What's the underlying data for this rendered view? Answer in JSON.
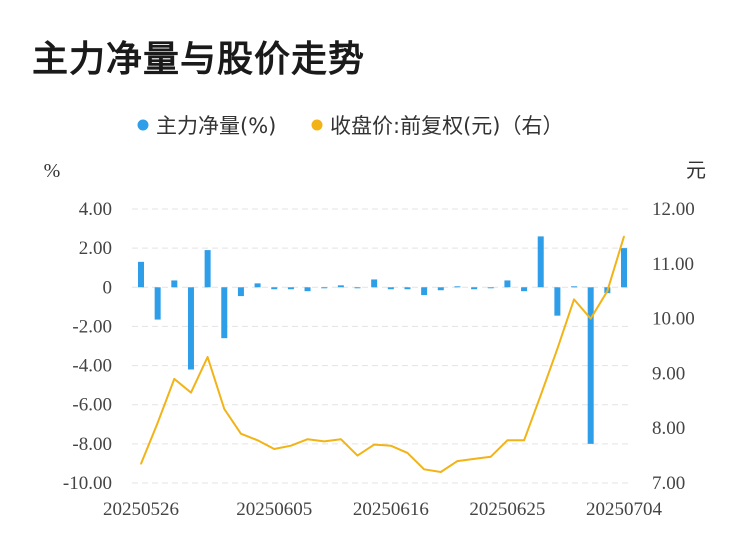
{
  "title": "主力净量与股价走势",
  "chart_data": {
    "type": "bar+line",
    "title": "主力净量与股价走势",
    "left_axis": {
      "unit": "%",
      "range": [
        -10,
        4
      ],
      "ticks": [
        "4.00",
        "2.00",
        "0",
        "-2.00",
        "-4.00",
        "-6.00",
        "-8.00",
        "-10.00"
      ]
    },
    "right_axis": {
      "unit": "元",
      "range": [
        7,
        12
      ],
      "ticks": [
        "12.00",
        "11.00",
        "10.00",
        "9.00",
        "8.00",
        "7.00"
      ]
    },
    "x_tick_labels": [
      "20250526",
      "20250605",
      "20250616",
      "20250625",
      "20250704"
    ],
    "x_tick_indices": [
      0,
      8,
      15,
      22,
      29
    ],
    "legend": [
      {
        "name": "主力净量(%)",
        "color": "#2f9ee8"
      },
      {
        "name": "收盘价:前复权(元)（右）",
        "color": "#f2b316"
      }
    ],
    "series": [
      {
        "name": "主力净量(%)",
        "axis": "left",
        "kind": "bar",
        "color": "#2f9ee8",
        "values": [
          1.3,
          -1.65,
          0.35,
          -4.2,
          1.9,
          -2.6,
          -0.45,
          0.2,
          -0.1,
          -0.1,
          -0.2,
          -0.05,
          0.1,
          -0.05,
          0.4,
          -0.1,
          -0.1,
          -0.4,
          -0.15,
          0.05,
          -0.1,
          0.0,
          0.35,
          -0.2,
          2.6,
          -1.45,
          0.05,
          -8.0,
          -0.3,
          2.0
        ]
      },
      {
        "name": "收盘价:前复权(元)（右）",
        "axis": "right",
        "kind": "line",
        "color": "#f2b316",
        "values": [
          7.35,
          8.1,
          8.9,
          8.65,
          9.3,
          8.35,
          7.9,
          7.78,
          7.62,
          7.68,
          7.8,
          7.76,
          7.8,
          7.5,
          7.7,
          7.68,
          7.55,
          7.25,
          7.2,
          7.4,
          7.44,
          7.48,
          7.78,
          7.78,
          8.6,
          9.45,
          10.35,
          10.0,
          10.5,
          11.5
        ]
      }
    ],
    "grid": true
  }
}
